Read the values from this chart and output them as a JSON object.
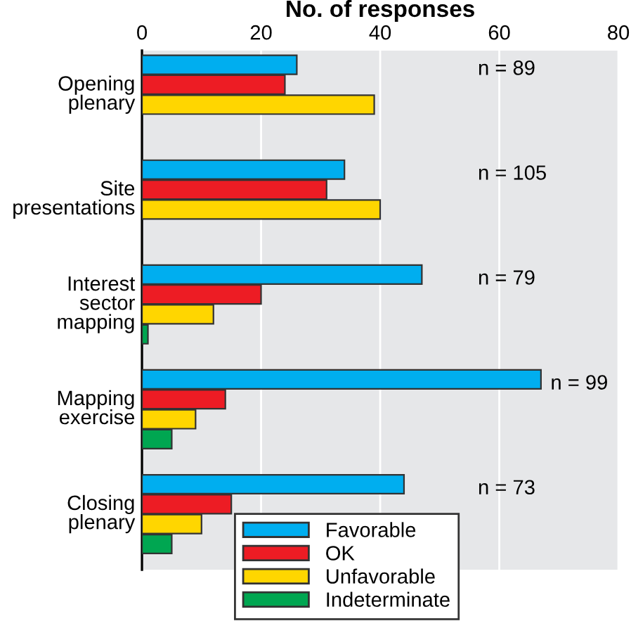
{
  "chart_data": {
    "type": "bar",
    "orientation": "horizontal",
    "xlabel": "No. of responses",
    "categories": [
      "Opening\nplenary",
      "Site\npresentations",
      "Interest\nsector\nmapping",
      "Mapping\nexercise",
      "Closing\nplenary"
    ],
    "series": [
      {
        "name": "Favorable",
        "color": "#00aeef",
        "values": [
          26,
          34,
          47,
          67,
          44
        ]
      },
      {
        "name": "OK",
        "color": "#ed1c24",
        "values": [
          24,
          31,
          20,
          14,
          15
        ]
      },
      {
        "name": "Unfavorable",
        "color": "#ffd600",
        "values": [
          39,
          40,
          12,
          9,
          10
        ]
      },
      {
        "name": "Indeterminate",
        "color": "#00a651",
        "values": [
          null,
          null,
          1,
          5,
          5
        ]
      }
    ],
    "xlim": [
      0,
      80
    ],
    "xticks": [
      0,
      20,
      40,
      60,
      80
    ],
    "grid": "x",
    "legend": "bottom",
    "annotations": [
      "n = 89",
      "n = 105",
      "n = 79",
      "n = 99",
      "n = 73"
    ]
  }
}
